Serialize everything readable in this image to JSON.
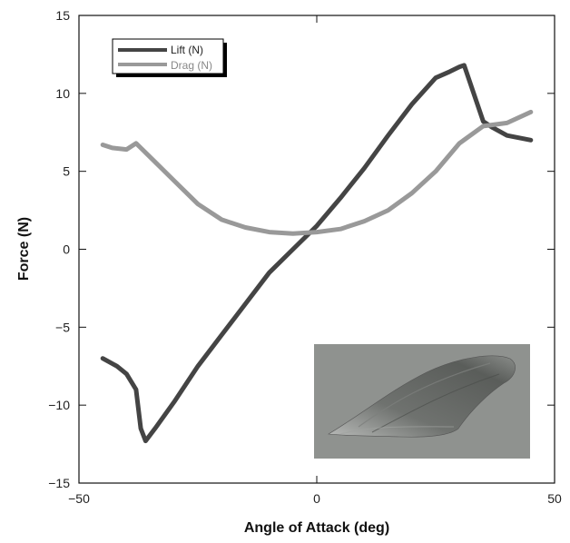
{
  "chart_data": {
    "type": "line",
    "xlabel": "Angle of Attack (deg)",
    "ylabel": "Force (N)",
    "xlim": [
      -50,
      50
    ],
    "ylim": [
      -15,
      15
    ],
    "x_ticks": [
      -50,
      0,
      50
    ],
    "y_ticks": [
      -15,
      -10,
      -5,
      0,
      5,
      10,
      15
    ],
    "x_tick_labels": [
      "−50",
      "0",
      "50"
    ],
    "y_tick_labels": [
      "−15",
      "−10",
      "−5",
      "0",
      "5",
      "10",
      "15"
    ],
    "grid": false,
    "legend_position": "top-left",
    "series": [
      {
        "name": "Lift (N)",
        "color": "#444444",
        "x": [
          -45,
          -42,
          -40,
          -38,
          -37,
          -36,
          -34,
          -30,
          -25,
          -20,
          -15,
          -10,
          -5,
          0,
          5,
          10,
          15,
          20,
          25,
          28,
          30,
          31,
          33,
          35,
          37,
          40,
          45
        ],
        "y": [
          -7,
          -7.5,
          -8,
          -9,
          -11.5,
          -12.3,
          -11.5,
          -9.8,
          -7.5,
          -5.5,
          -3.5,
          -1.5,
          0,
          1.5,
          3.3,
          5.2,
          7.3,
          9.3,
          11,
          11.4,
          11.7,
          11.8,
          10,
          8.2,
          7.8,
          7.3,
          7
        ]
      },
      {
        "name": "Drag (N)",
        "color": "#999999",
        "x": [
          -45,
          -43,
          -40,
          -38,
          -37,
          -35,
          -30,
          -25,
          -20,
          -15,
          -10,
          -5,
          0,
          5,
          10,
          15,
          20,
          25,
          30,
          35,
          40,
          45
        ],
        "y": [
          6.7,
          6.5,
          6.4,
          6.8,
          6.5,
          5.9,
          4.4,
          2.9,
          1.9,
          1.4,
          1.1,
          1.0,
          1.1,
          1.3,
          1.8,
          2.5,
          3.6,
          5.0,
          6.8,
          7.9,
          8.1,
          8.8
        ]
      }
    ],
    "inset": {
      "description_icon": "wing-image-icon",
      "background": "#8f928f"
    }
  }
}
